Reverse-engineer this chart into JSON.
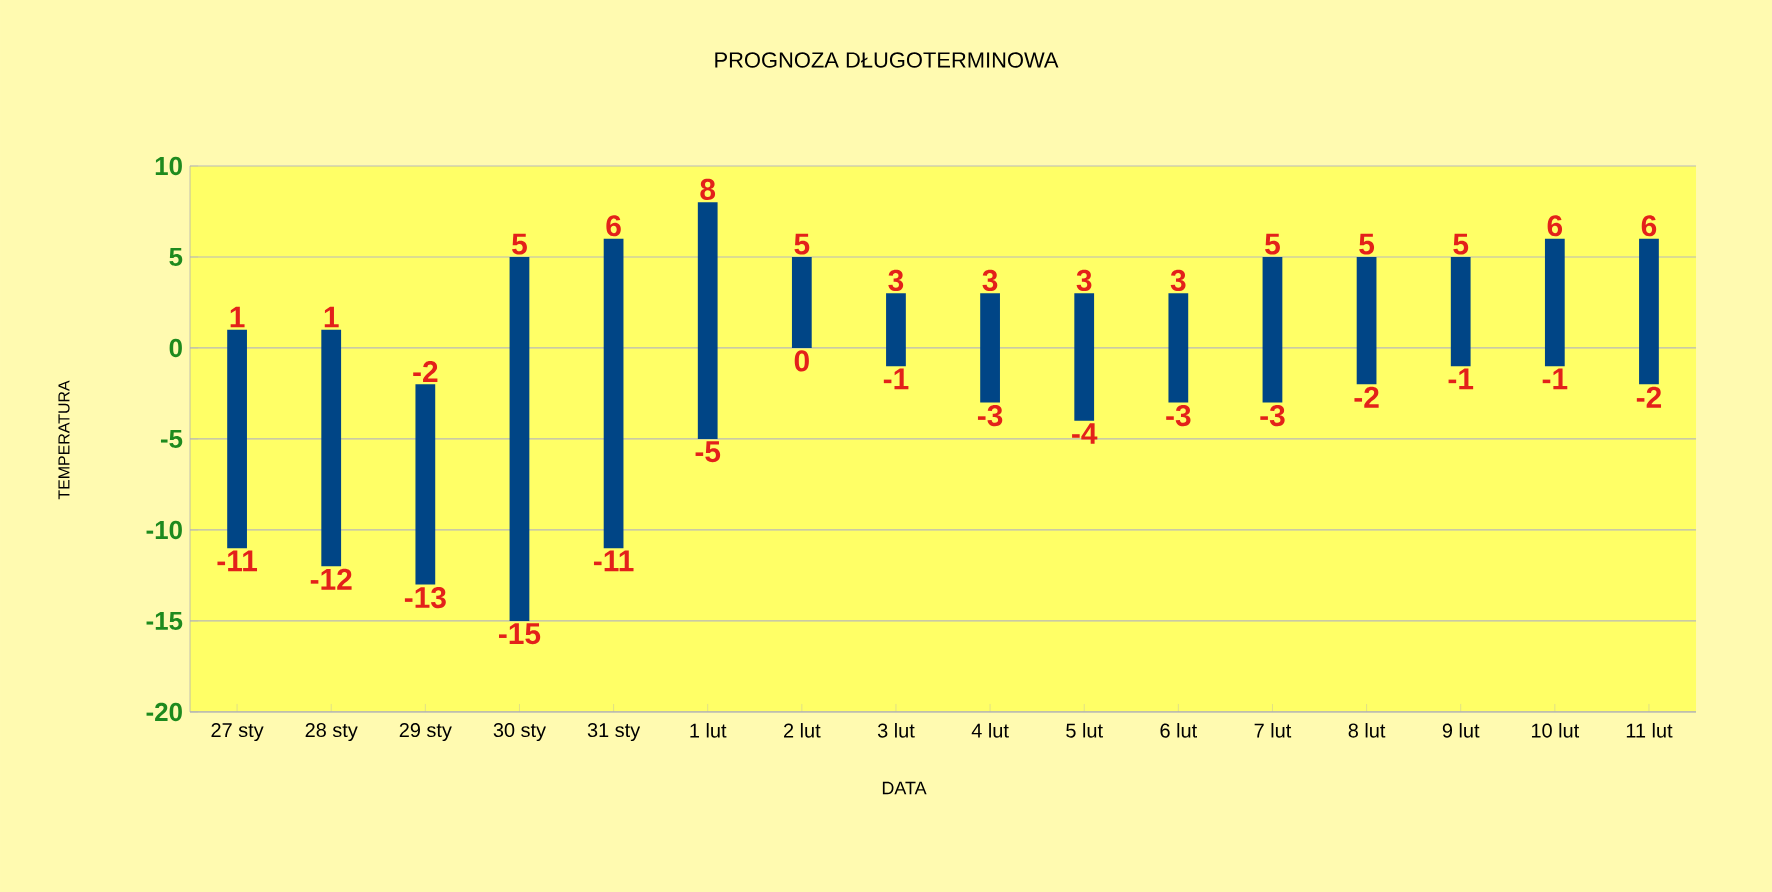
{
  "chart_data": {
    "type": "bar",
    "title": "PROGNOZA DŁUGOTERMINOWA",
    "xlabel": "DATA",
    "ylabel": "TEMPERATURA",
    "categories": [
      "27 sty",
      "28 sty",
      "29 sty",
      "30 sty",
      "31 sty",
      "1 lut",
      "2 lut",
      "3 lut",
      "4 lut",
      "5 lut",
      "6 lut",
      "7 lut",
      "8 lut",
      "9 lut",
      "10 lut",
      "11 lut"
    ],
    "base": [
      -11,
      -12,
      -13,
      -15,
      -11,
      -5,
      0,
      -1,
      -3,
      -4,
      -3,
      -3,
      -2,
      -1,
      -1,
      -2
    ],
    "values": [
      12,
      13,
      11,
      20,
      17,
      13,
      5,
      4,
      6,
      7,
      6,
      8,
      7,
      6,
      7,
      8
    ],
    "color": "#004586",
    "ylim": [
      -20,
      10
    ],
    "yticks": [
      -20,
      -15,
      -10,
      -5,
      0,
      5,
      10
    ],
    "grid": "y",
    "annotations": [
      {
        "text": "1",
        "x": "27 sty",
        "y": 1
      },
      {
        "text": "-11",
        "x": "27 sty",
        "y": -11
      },
      {
        "text": "1",
        "x": "28 sty",
        "y": 1
      },
      {
        "text": "-12",
        "x": "28 sty",
        "y": -12
      },
      {
        "text": "-2",
        "x": "29 sty",
        "y": -2
      },
      {
        "text": "-13",
        "x": "29 sty",
        "y": -13
      },
      {
        "text": "5",
        "x": "30 sty",
        "y": 5
      },
      {
        "text": "-15",
        "x": "30 sty",
        "y": -15
      },
      {
        "text": "6",
        "x": "31 sty",
        "y": 6
      },
      {
        "text": "-11",
        "x": "31 sty",
        "y": -11
      },
      {
        "text": "8",
        "x": "1 lut",
        "y": 8
      },
      {
        "text": "-5",
        "x": "1 lut",
        "y": -5
      },
      {
        "text": "5",
        "x": "2 lut",
        "y": 5
      },
      {
        "text": "0",
        "x": "2 lut",
        "y": 0
      },
      {
        "text": "3",
        "x": "3 lut",
        "y": 3
      },
      {
        "text": "-1",
        "x": "3 lut",
        "y": -1
      },
      {
        "text": "3",
        "x": "4 lut",
        "y": 3
      },
      {
        "text": "-3",
        "x": "4 lut",
        "y": -3
      },
      {
        "text": "3",
        "x": "5 lut",
        "y": 3
      },
      {
        "text": "-4",
        "x": "5 lut",
        "y": -4
      },
      {
        "text": "3",
        "x": "6 lut",
        "y": 3
      },
      {
        "text": "-3",
        "x": "6 lut",
        "y": -3
      },
      {
        "text": "5",
        "x": "7 lut",
        "y": 5
      },
      {
        "text": "-3",
        "x": "7 lut",
        "y": -3
      },
      {
        "text": "5",
        "x": "8 lut",
        "y": 5
      },
      {
        "text": "-2",
        "x": "8 lut",
        "y": -2
      },
      {
        "text": "5",
        "x": "9 lut",
        "y": 5
      },
      {
        "text": "-1",
        "x": "9 lut",
        "y": -1
      },
      {
        "text": "6",
        "x": "10 lut",
        "y": 6
      },
      {
        "text": "-1",
        "x": "10 lut",
        "y": -1
      },
      {
        "text": "6",
        "x": "11 lut",
        "y": 6
      },
      {
        "text": "-2",
        "x": "11 lut",
        "y": -2
      }
    ]
  }
}
